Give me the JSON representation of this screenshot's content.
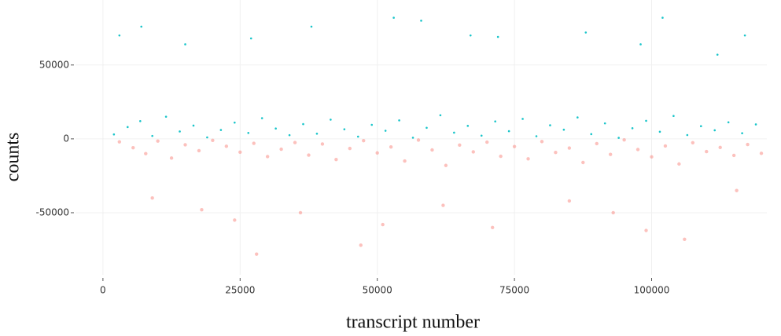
{
  "chart_data": {
    "type": "scatter",
    "x_label": "transcript number",
    "y_label": "counts",
    "xlim": [
      -5000,
      121000
    ],
    "ylim": [
      -92000,
      94000
    ],
    "xticks": [
      0,
      25000,
      50000,
      75000,
      100000
    ],
    "yticks": [
      -50000,
      0,
      50000
    ],
    "grid": true,
    "series": [
      {
        "color": "#00BFC4",
        "x": [
          2000,
          4500,
          6800,
          9000,
          11500,
          14000,
          16500,
          19000,
          21500,
          24000,
          26500,
          29000,
          31500,
          34000,
          36500,
          39000,
          41500,
          44000,
          46500,
          49000,
          51500,
          54000,
          56500,
          59000,
          61500,
          64000,
          66500,
          69000,
          71500,
          74000,
          76500,
          79000,
          81500,
          84000,
          86500,
          89000,
          91500,
          94000,
          96500,
          99000,
          101500,
          104000,
          106500,
          109000,
          111500,
          114000,
          116500,
          119000,
          3000,
          7000,
          15000,
          27000,
          38000,
          53000,
          58000,
          67000,
          72000,
          88000,
          98000,
          102000,
          112000,
          117000
        ],
        "values": [
          3000,
          8000,
          12000,
          2000,
          15000,
          5000,
          9000,
          1000,
          6000,
          11000,
          4000,
          14000,
          7000,
          2500,
          10000,
          3500,
          13000,
          6500,
          1500,
          9500,
          5500,
          12500,
          800,
          7500,
          16000,
          4200,
          8800,
          2200,
          11800,
          5200,
          13500,
          1800,
          9200,
          6200,
          14500,
          3200,
          10500,
          700,
          7200,
          12200,
          4800,
          15500,
          2600,
          8600,
          5800,
          11200,
          3800,
          9800,
          70000,
          76000,
          64000,
          68000,
          76000,
          82000,
          80000,
          70000,
          69000,
          72000,
          64000,
          82000,
          57000,
          70000
        ]
      },
      {
        "color": "#F8766D",
        "x": [
          3000,
          5500,
          7800,
          10000,
          12500,
          15000,
          17500,
          20000,
          22500,
          25000,
          27500,
          30000,
          32500,
          35000,
          37500,
          40000,
          42500,
          45000,
          47500,
          50000,
          52500,
          55000,
          57500,
          60000,
          62500,
          65000,
          67500,
          70000,
          72500,
          75000,
          77500,
          80000,
          82500,
          85000,
          87500,
          90000,
          92500,
          95000,
          97500,
          100000,
          102500,
          105000,
          107500,
          110000,
          112500,
          115000,
          117500,
          120000,
          9000,
          18000,
          24000,
          28000,
          36000,
          47000,
          51000,
          62000,
          71000,
          85000,
          93000,
          99000,
          106000,
          115500
        ],
        "values": [
          -2000,
          -6000,
          -10000,
          -1500,
          -13000,
          -4000,
          -8000,
          -1000,
          -5000,
          -9000,
          -3000,
          -12000,
          -7000,
          -2500,
          -11000,
          -3500,
          -14000,
          -6500,
          -1200,
          -9500,
          -5500,
          -15000,
          -800,
          -7500,
          -18000,
          -4200,
          -8800,
          -2200,
          -11800,
          -5200,
          -13500,
          -1800,
          -9200,
          -6200,
          -16000,
          -3200,
          -10500,
          -700,
          -7200,
          -12200,
          -4800,
          -17000,
          -2600,
          -8600,
          -5800,
          -11200,
          -3800,
          -9800,
          -40000,
          -48000,
          -55000,
          -78000,
          -50000,
          -72000,
          -58000,
          -45000,
          -60000,
          -42000,
          -50000,
          -62000,
          -68000,
          -35000
        ]
      }
    ]
  }
}
